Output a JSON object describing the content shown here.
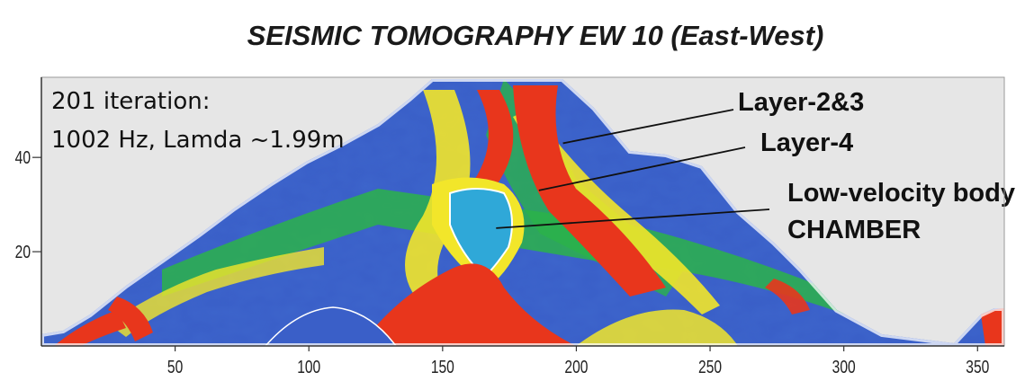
{
  "chart_data": {
    "type": "heatmap",
    "title": "SEISMIC TOMOGRAPHY EW 10 (East-West)",
    "xlabel": "",
    "ylabel": "",
    "x_ticks": [
      50,
      100,
      150,
      200,
      250,
      300,
      350
    ],
    "y_ticks": [
      20,
      40
    ],
    "xlim": [
      0,
      360
    ],
    "ylim": [
      0,
      57
    ],
    "info_lines": [
      "201 iteration:",
      "1002 Hz,  Lamda ~1.99m"
    ],
    "annotations": [
      {
        "text": "Layer-2&3",
        "point": [
          195,
          43
        ]
      },
      {
        "text": "Layer-4",
        "point": [
          186,
          33
        ]
      },
      {
        "text": "Low-velocity body",
        "point": [
          170,
          25
        ]
      },
      {
        "text": "CHAMBER",
        "point": [
          170,
          25
        ]
      }
    ],
    "colors": {
      "background": "#e6e6e6",
      "low_velocity": "#3a5fc8",
      "mid_low": "#2fa8d8",
      "mid": "#2bb34a",
      "mid_high": "#f2e62a",
      "high_velocity": "#e8361c"
    }
  }
}
